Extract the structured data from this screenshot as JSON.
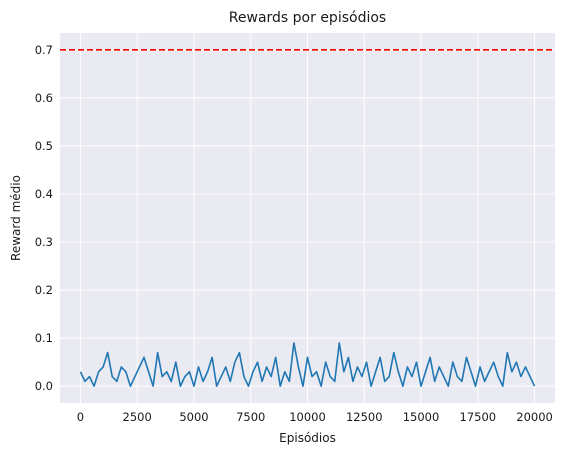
{
  "chart_data": {
    "type": "line",
    "title": "Rewards por episódios",
    "xlabel": "Episódios",
    "ylabel": "Reward médio",
    "xlim": [
      -900,
      20900
    ],
    "ylim": [
      -0.035,
      0.735
    ],
    "x_ticks": [
      0,
      2500,
      5000,
      7500,
      10000,
      12500,
      15000,
      17500,
      20000
    ],
    "y_ticks": [
      0.0,
      0.1,
      0.2,
      0.3,
      0.4,
      0.5,
      0.6,
      0.7
    ],
    "x_tick_labels": [
      "0",
      "2500",
      "5000",
      "7500",
      "10000",
      "12500",
      "15000",
      "17500",
      "20000"
    ],
    "y_tick_labels": [
      "0.0",
      "0.1",
      "0.2",
      "0.3",
      "0.4",
      "0.5",
      "0.6",
      "0.7"
    ],
    "grid": true,
    "background_color": "#eaeaf2",
    "threshold_line": {
      "y": 0.7,
      "color": "#ff0000",
      "style": "dashed"
    },
    "series": [
      {
        "color": "#1f77b4",
        "x": [
          0,
          200,
          400,
          600,
          800,
          1000,
          1200,
          1400,
          1600,
          1800,
          2000,
          2200,
          2400,
          2600,
          2800,
          3000,
          3200,
          3400,
          3600,
          3800,
          4000,
          4200,
          4400,
          4600,
          4800,
          5000,
          5200,
          5400,
          5600,
          5800,
          6000,
          6200,
          6400,
          6600,
          6800,
          7000,
          7200,
          7400,
          7600,
          7800,
          8000,
          8200,
          8400,
          8600,
          8800,
          9000,
          9200,
          9400,
          9600,
          9800,
          10000,
          10200,
          10400,
          10600,
          10800,
          11000,
          11200,
          11400,
          11600,
          11800,
          12000,
          12200,
          12400,
          12600,
          12800,
          13000,
          13200,
          13400,
          13600,
          13800,
          14000,
          14200,
          14400,
          14600,
          14800,
          15000,
          15200,
          15400,
          15600,
          15800,
          16000,
          16200,
          16400,
          16600,
          16800,
          17000,
          17200,
          17400,
          17600,
          17800,
          18000,
          18200,
          18400,
          18600,
          18800,
          19000,
          19200,
          19400,
          19600,
          19800,
          20000
        ],
        "values": [
          0.03,
          0.01,
          0.02,
          0.0,
          0.03,
          0.04,
          0.07,
          0.02,
          0.01,
          0.04,
          0.03,
          0.0,
          0.02,
          0.04,
          0.06,
          0.03,
          0.0,
          0.07,
          0.02,
          0.03,
          0.01,
          0.05,
          0.0,
          0.02,
          0.03,
          0.0,
          0.04,
          0.01,
          0.03,
          0.06,
          0.0,
          0.02,
          0.04,
          0.01,
          0.05,
          0.07,
          0.02,
          0.0,
          0.03,
          0.05,
          0.01,
          0.04,
          0.02,
          0.06,
          0.0,
          0.03,
          0.01,
          0.09,
          0.04,
          0.0,
          0.06,
          0.02,
          0.03,
          0.0,
          0.05,
          0.02,
          0.01,
          0.09,
          0.03,
          0.06,
          0.01,
          0.04,
          0.02,
          0.05,
          0.0,
          0.03,
          0.06,
          0.01,
          0.02,
          0.07,
          0.03,
          0.0,
          0.04,
          0.02,
          0.05,
          0.0,
          0.03,
          0.06,
          0.01,
          0.04,
          0.02,
          0.0,
          0.05,
          0.02,
          0.01,
          0.06,
          0.03,
          0.0,
          0.04,
          0.01,
          0.03,
          0.05,
          0.02,
          0.0,
          0.07,
          0.03,
          0.05,
          0.02,
          0.04,
          0.02,
          0.0
        ]
      }
    ]
  }
}
